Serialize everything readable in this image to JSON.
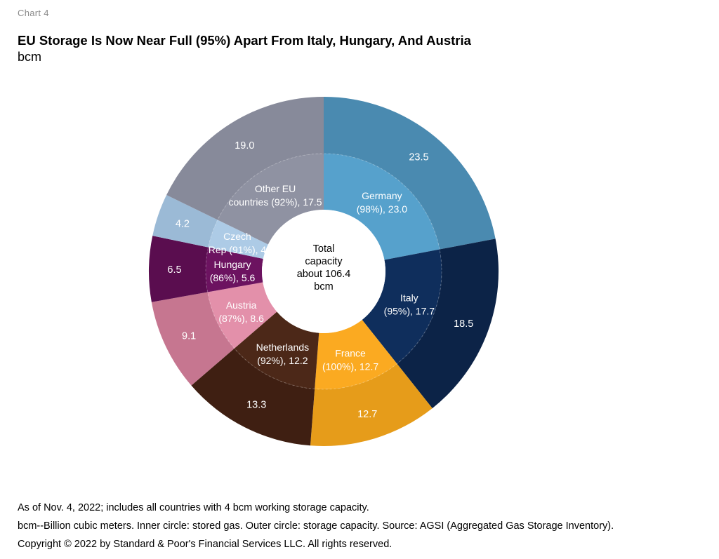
{
  "header": {
    "chart_label": "Chart 4",
    "title": "EU Storage Is Now Near Full (95%) Apart From Italy, Hungary, And Austria",
    "unit": "bcm"
  },
  "center_label": [
    "Total",
    "capacity",
    "about 106.4",
    "bcm"
  ],
  "footnotes": [
    "As of Nov. 4, 2022; includes all countries with 4 bcm working storage capacity.",
    "bcm--Billion cubic meters. Inner circle: stored gas. Outer circle: storage capacity. Source: AGSI (Aggregated Gas Storage Inventory).",
    "Copyright © 2022 by Standard & Poor's Financial Services LLC. All rights reserved."
  ],
  "chart_data": {
    "type": "donut",
    "outer_ring": "storage capacity",
    "inner_ring": "stored gas",
    "total_capacity": 106.4,
    "series": [
      {
        "name": "Germany",
        "capacity": 23.5,
        "stored": 23.0,
        "fill_pct": 98,
        "inner_label": [
          "Germany",
          "(98%), 23.0"
        ],
        "outer_label": "23.5",
        "outer_color": "#4a8ab0",
        "inner_color": "#56a1cc",
        "text_color": "#ffffff"
      },
      {
        "name": "Italy",
        "capacity": 18.5,
        "stored": 17.7,
        "fill_pct": 95,
        "inner_label": [
          "Italy",
          "(95%), 17.7"
        ],
        "outer_label": "18.5",
        "outer_color": "#0c2347",
        "inner_color": "#0f2e5c",
        "text_color": "#ffffff"
      },
      {
        "name": "France",
        "capacity": 12.7,
        "stored": 12.7,
        "fill_pct": 100,
        "inner_label": [
          "France",
          "(100%), 12.7"
        ],
        "outer_label": "12.7",
        "outer_color": "#e69c1a",
        "inner_color": "#fbaa21",
        "text_color": "#ffffff"
      },
      {
        "name": "Netherlands",
        "capacity": 13.3,
        "stored": 12.2,
        "fill_pct": 92,
        "inner_label": [
          "Netherlands",
          "(92%), 12.2"
        ],
        "outer_label": "13.3",
        "outer_color": "#3f1f12",
        "inner_color": "#4c2818",
        "text_color": "#ffffff"
      },
      {
        "name": "Austria",
        "capacity": 9.1,
        "stored": 8.6,
        "fill_pct": 87,
        "inner_label": [
          "Austria",
          "(87%), 8.6"
        ],
        "outer_label": "9.1",
        "outer_color": "#c67690",
        "inner_color": "#e390aa",
        "text_color": "#ffffff"
      },
      {
        "name": "Hungary",
        "capacity": 6.5,
        "stored": 5.6,
        "fill_pct": 86,
        "inner_label": [
          "Hungary",
          "(86%), 5.6"
        ],
        "outer_label": "6.5",
        "outer_color": "#5a0d4f",
        "inner_color": "#6c1360",
        "text_color": "#ffffff"
      },
      {
        "name": "Czech Rep",
        "capacity": 4.2,
        "stored": 4.0,
        "fill_pct": 91,
        "inner_label": [
          "Czech",
          "Rep (91%), 4"
        ],
        "outer_label": "4.2",
        "outer_color": "#9bbad6",
        "inner_color": "#adcbe6",
        "text_color": "#ffffff"
      },
      {
        "name": "Other EU countries",
        "capacity": 19.0,
        "stored": 17.5,
        "fill_pct": 92,
        "inner_label": [
          "Other EU",
          "countries (92%), 17.5"
        ],
        "outer_label": "19.0",
        "outer_color": "#878a9a",
        "inner_color": "#8f92a2",
        "text_color": "#ffffff"
      }
    ]
  }
}
